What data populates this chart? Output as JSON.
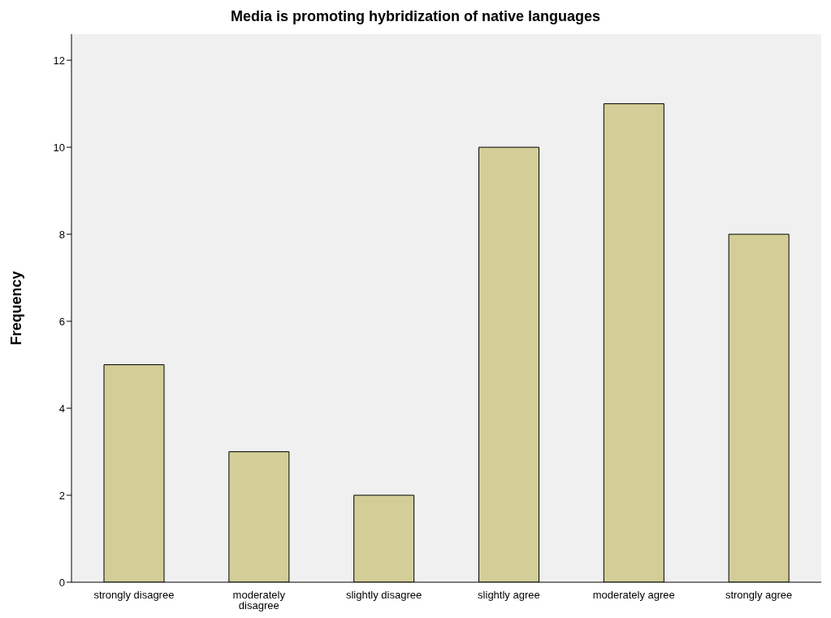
{
  "chart_data": {
    "type": "bar",
    "title": "Media is promoting hybridization of native languages",
    "ylabel": "Frequency",
    "categories": [
      "strongly disagree",
      "moderately disagree",
      "slightly disagree",
      "slightly agree",
      "moderately agree",
      "strongly agree"
    ],
    "values": [
      5,
      3,
      2,
      10,
      11,
      8
    ],
    "color": "#d3ce97",
    "ylim": [
      0,
      12.6
    ],
    "yticks": [
      0,
      2,
      4,
      6,
      8,
      10,
      12
    ],
    "grid": false
  }
}
